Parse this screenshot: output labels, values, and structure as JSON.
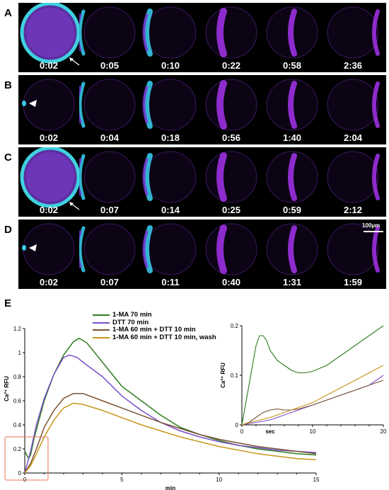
{
  "panels": [
    {
      "label": "A",
      "times": [
        "0:02",
        "0:05",
        "0:10",
        "0:22",
        "0:58",
        "2:36"
      ]
    },
    {
      "label": "B",
      "times": [
        "0:02",
        "0:04",
        "0:18",
        "0:56",
        "1:40",
        "2:04"
      ]
    },
    {
      "label": "C",
      "times": [
        "0:02",
        "0:07",
        "0:14",
        "0:25",
        "0:59",
        "2:12"
      ]
    },
    {
      "label": "D",
      "times": [
        "0:02",
        "0:07",
        "0:11",
        "0:40",
        "1:31",
        "1:59"
      ]
    }
  ],
  "scale_bar": "100µm",
  "panel_e": {
    "label": "E"
  },
  "chart_data": {
    "type": "line",
    "ylabel": "Ca²⁺ RFU",
    "xlabel": "min",
    "xlim": [
      0,
      15
    ],
    "ylim": [
      0,
      1.2
    ],
    "x_ticks": [
      "0",
      "5",
      "10",
      "15"
    ],
    "y_ticks": [
      "0",
      "0.2",
      "0.4",
      "0.6",
      "0.8",
      "1",
      "1.2"
    ],
    "series": [
      {
        "name": "1-MA 70 min",
        "color": "#2e7d1e",
        "x": [
          0,
          0.1,
          0.2,
          0.3,
          0.5,
          1,
          1.5,
          2,
          2.5,
          2.8,
          3.2,
          4,
          5,
          6,
          7,
          8,
          9,
          10,
          11,
          12,
          13,
          14,
          15
        ],
        "y": [
          0.18,
          0.15,
          0.12,
          0.15,
          0.3,
          0.6,
          0.82,
          0.98,
          1.09,
          1.12,
          1.08,
          0.92,
          0.72,
          0.6,
          0.48,
          0.38,
          0.32,
          0.27,
          0.23,
          0.2,
          0.18,
          0.16,
          0.15
        ]
      },
      {
        "name": "DTT 70 min",
        "color": "#7b4fc9",
        "x": [
          0,
          0.3,
          0.6,
          1,
          1.5,
          2,
          2.3,
          2.7,
          3,
          4,
          5,
          6,
          7,
          8,
          9,
          10,
          11,
          12,
          13,
          14,
          15
        ],
        "y": [
          0,
          0.18,
          0.4,
          0.62,
          0.82,
          0.96,
          0.98,
          0.96,
          0.92,
          0.8,
          0.64,
          0.52,
          0.42,
          0.35,
          0.3,
          0.26,
          0.23,
          0.21,
          0.19,
          0.18,
          0.17
        ]
      },
      {
        "name": "1-MA 60 min + DTT 10 min",
        "color": "#7a5436",
        "x": [
          0,
          0.3,
          0.6,
          1,
          1.5,
          2,
          2.5,
          3,
          4,
          5,
          6,
          7,
          8,
          9,
          10,
          11,
          12,
          13,
          14,
          15
        ],
        "y": [
          0,
          0.08,
          0.2,
          0.38,
          0.52,
          0.62,
          0.66,
          0.66,
          0.6,
          0.54,
          0.48,
          0.42,
          0.37,
          0.32,
          0.28,
          0.25,
          0.22,
          0.2,
          0.18,
          0.16
        ]
      },
      {
        "name": "1-MA 60 min + DTT 10 min, wash",
        "color": "#c7951a",
        "x": [
          0,
          0.3,
          0.6,
          1,
          1.5,
          2,
          2.5,
          3,
          4,
          5,
          6,
          7,
          8,
          9,
          10,
          11,
          12,
          13,
          14,
          15
        ],
        "y": [
          0,
          0.06,
          0.16,
          0.3,
          0.44,
          0.54,
          0.58,
          0.57,
          0.52,
          0.46,
          0.4,
          0.35,
          0.3,
          0.26,
          0.22,
          0.19,
          0.16,
          0.14,
          0.12,
          0.11
        ]
      }
    ],
    "inset": {
      "ylabel": "Ca²⁺ RFU",
      "xlabel": "sec",
      "xlim": [
        0,
        20
      ],
      "ylim": [
        0,
        0.2
      ],
      "x_ticks": [
        "0",
        "10",
        "20"
      ],
      "y_ticks": [
        "0",
        "0.1",
        "0.2"
      ],
      "series": [
        {
          "color": "#2e7d1e",
          "x": [
            0,
            1,
            2,
            2.5,
            3,
            3.5,
            4,
            5,
            6,
            7,
            8,
            9,
            10,
            12,
            14,
            16,
            18,
            20
          ],
          "y": [
            0,
            0.08,
            0.16,
            0.18,
            0.18,
            0.17,
            0.15,
            0.13,
            0.12,
            0.11,
            0.105,
            0.105,
            0.108,
            0.12,
            0.14,
            0.16,
            0.18,
            0.2
          ]
        },
        {
          "color": "#7b4fc9",
          "x": [
            0,
            2,
            4,
            6,
            8,
            10,
            12,
            14,
            16,
            18,
            20
          ],
          "y": [
            0,
            0.005,
            0.01,
            0.02,
            0.03,
            0.04,
            0.05,
            0.06,
            0.07,
            0.08,
            0.1
          ]
        },
        {
          "color": "#7a5436",
          "x": [
            0,
            1,
            2,
            3,
            4,
            5,
            6,
            7,
            8,
            10,
            12,
            14,
            16,
            18,
            20
          ],
          "y": [
            0,
            0.005,
            0.015,
            0.025,
            0.03,
            0.032,
            0.03,
            0.03,
            0.032,
            0.04,
            0.05,
            0.06,
            0.07,
            0.08,
            0.09
          ]
        },
        {
          "color": "#c7951a",
          "x": [
            0,
            2,
            4,
            6,
            8,
            10,
            12,
            14,
            16,
            18,
            20
          ],
          "y": [
            0,
            0.008,
            0.015,
            0.025,
            0.035,
            0.045,
            0.06,
            0.075,
            0.09,
            0.105,
            0.12
          ]
        }
      ]
    }
  }
}
